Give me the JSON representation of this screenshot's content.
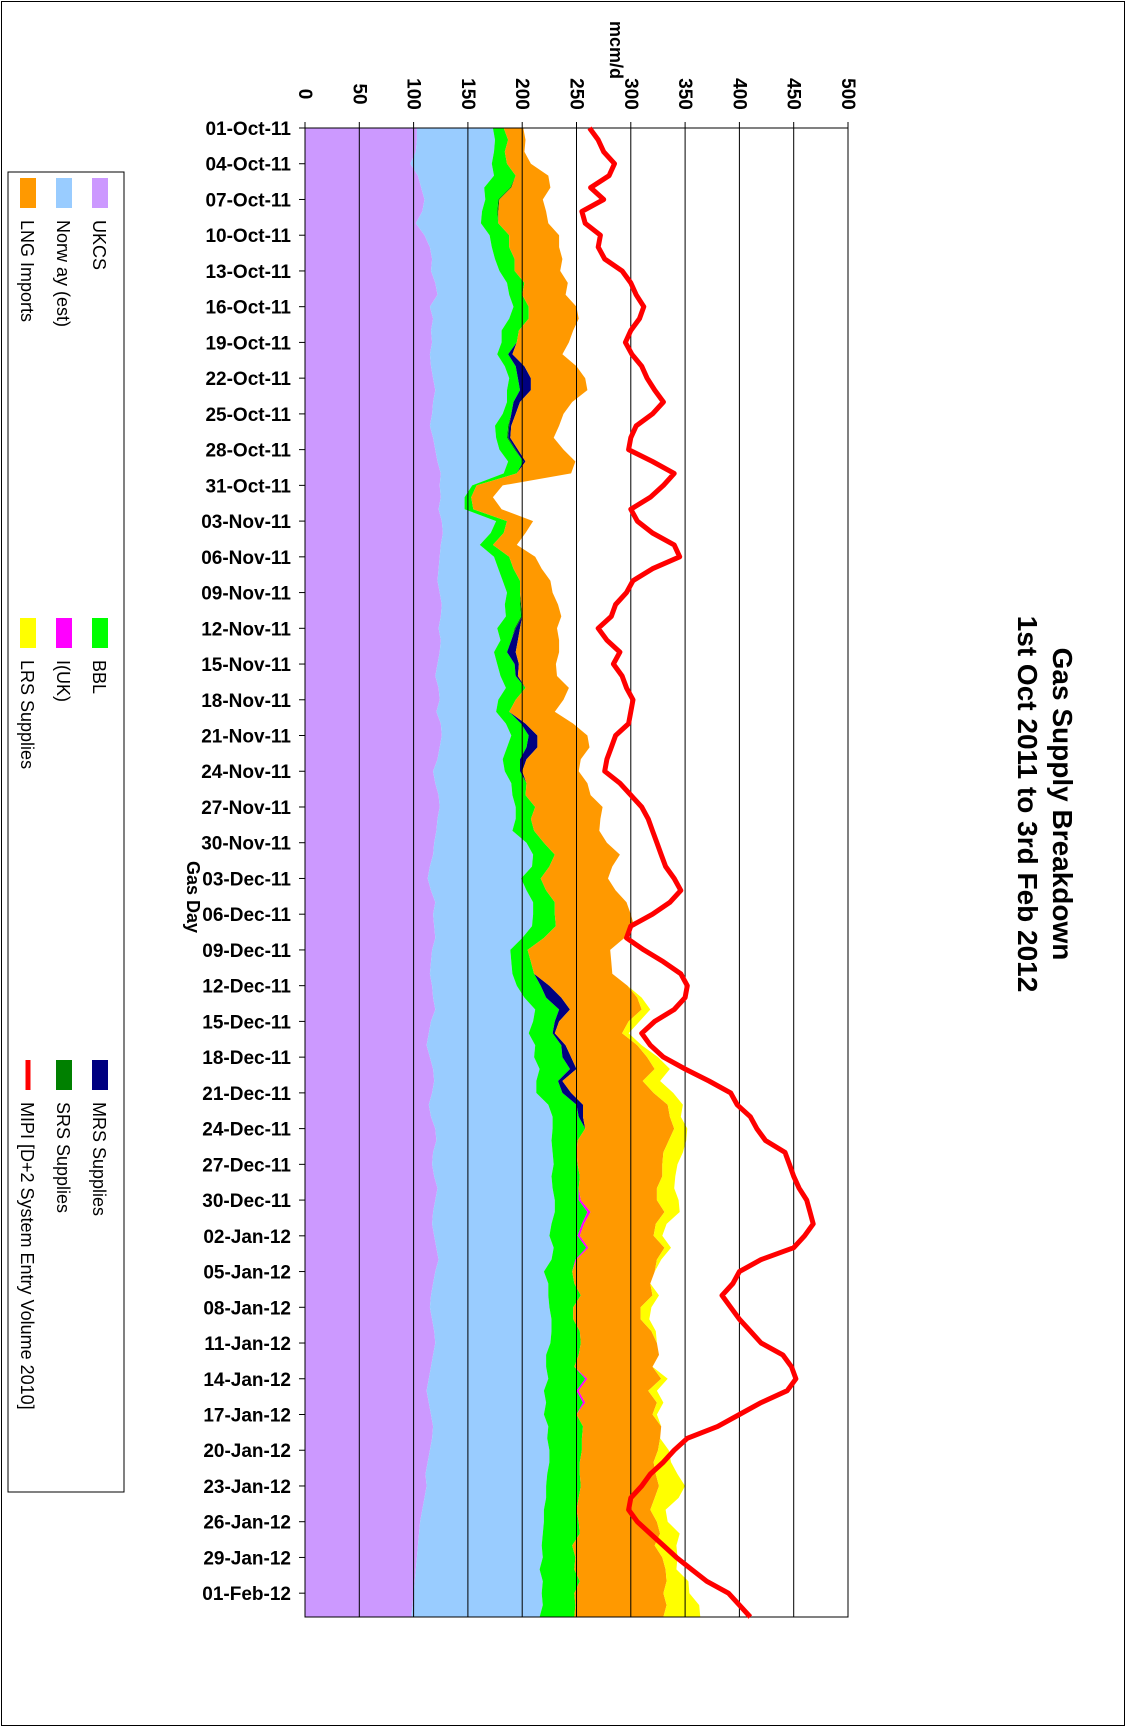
{
  "chart_data": {
    "type": "area",
    "orientation": "rotated-90-clockwise",
    "title": "Gas Supply Breakdown",
    "subtitle": "1st Oct 2011 to 3rd Feb 2012",
    "xlabel": "Gas Day",
    "ylabel": "mcm/d",
    "ylim": [
      0,
      500
    ],
    "yticks": [
      0,
      50,
      100,
      150,
      200,
      250,
      300,
      350,
      400,
      450,
      500
    ],
    "grid": true,
    "legend_position": "left (rotated)",
    "x_labels": [
      "01-Oct-11",
      "04-Oct-11",
      "07-Oct-11",
      "10-Oct-11",
      "13-Oct-11",
      "16-Oct-11",
      "19-Oct-11",
      "22-Oct-11",
      "25-Oct-11",
      "28-Oct-11",
      "31-Oct-11",
      "03-Nov-11",
      "06-Nov-11",
      "09-Nov-11",
      "12-Nov-11",
      "15-Nov-11",
      "18-Nov-11",
      "21-Nov-11",
      "24-Nov-11",
      "27-Nov-11",
      "30-Nov-11",
      "03-Dec-11",
      "06-Dec-11",
      "09-Dec-11",
      "12-Dec-11",
      "15-Dec-11",
      "18-Dec-11",
      "21-Dec-11",
      "24-Dec-11",
      "27-Dec-11",
      "30-Dec-11",
      "02-Jan-12",
      "05-Jan-12",
      "08-Jan-12",
      "11-Jan-12",
      "14-Jan-12",
      "17-Jan-12",
      "20-Jan-12",
      "23-Jan-12",
      "26-Jan-12",
      "29-Jan-12",
      "01-Feb-12"
    ],
    "day_count": 126,
    "x_interval_days": 3,
    "series": [
      {
        "name": "UKCS",
        "kind": "area",
        "color": "#CC99FF",
        "values": [
          103,
          103,
          102,
          97,
          104,
          107,
          110,
          108,
          102,
          110,
          115,
          117,
          116,
          120,
          122,
          115,
          118,
          116,
          117,
          115,
          116,
          118,
          120,
          118,
          117,
          115,
          118,
          120,
          122,
          125,
          124,
          125,
          123,
          126,
          127,
          125,
          124,
          123,
          122,
          124,
          126,
          125,
          123,
          125,
          124,
          122,
          120,
          123,
          124,
          121,
          125,
          126,
          124,
          122,
          118,
          120,
          123,
          124,
          122,
          121,
          119,
          118,
          115,
          113,
          116,
          120,
          118,
          119,
          120,
          117,
          116,
          115,
          117,
          118,
          120,
          116,
          114,
          112,
          115,
          118,
          119,
          117,
          114,
          116,
          120,
          121,
          118,
          117,
          119,
          122,
          120,
          118,
          117,
          119,
          121,
          123,
          120,
          118,
          116,
          115,
          117,
          119,
          120,
          118,
          116,
          114,
          112,
          114,
          116,
          118,
          117,
          115,
          113,
          111,
          112,
          110,
          108,
          106,
          105,
          104,
          103,
          102,
          101,
          100,
          99,
          98
        ]
      },
      {
        "name": "Norw ay (est)",
        "kind": "area",
        "color": "#99CCFF",
        "values": [
          70,
          72,
          72,
          75,
          70,
          58,
          56,
          55,
          60,
          60,
          57,
          58,
          63,
          66,
          66,
          77,
          70,
          65,
          64,
          62,
          68,
          70,
          66,
          68,
          65,
          60,
          58,
          59,
          65,
          58,
          30,
          22,
          24,
          50,
          44,
          36,
          50,
          55,
          60,
          62,
          58,
          60,
          54,
          55,
          50,
          55,
          60,
          62,
          54,
          55,
          60,
          64,
          62,
          60,
          66,
          70,
          68,
          70,
          72,
          70,
          85,
          92,
          94,
          86,
          88,
          90,
          92,
          90,
          80,
          72,
          74,
          76,
          78,
          84,
          92,
          94,
          92,
          100,
          96,
          98,
          94,
          96,
          110,
          112,
          108,
          106,
          110,
          112,
          108,
          106,
          110,
          112,
          110,
          106,
          108,
          104,
          100,
          106,
          108,
          110,
          110,
          108,
          106,
          104,
          106,
          110,
          108,
          108,
          104,
          106,
          106,
          110,
          112,
          112,
          110,
          112,
          112,
          114,
          114,
          114,
          116,
          114,
          118,
          118,
          120,
          118
        ]
      },
      {
        "name": "BBL",
        "kind": "area",
        "color": "#00FF00",
        "values": [
          10,
          12,
          10,
          14,
          20,
          24,
          12,
          14,
          16,
          18,
          16,
          18,
          14,
          16,
          12,
          14,
          18,
          16,
          14,
          10,
          10,
          8,
          12,
          6,
          8,
          12,
          10,
          14,
          14,
          12,
          4,
          6,
          8,
          10,
          12,
          12,
          14,
          14,
          16,
          12,
          14,
          14,
          16,
          10,
          12,
          16,
          14,
          18,
          16,
          12,
          14,
          16,
          18,
          16,
          14,
          14,
          12,
          18,
          14,
          20,
          16,
          20,
          16,
          18,
          18,
          20,
          20,
          22,
          20,
          16,
          18,
          20,
          22,
          20,
          22,
          20,
          22,
          24,
          26,
          28,
          20,
          24,
          26,
          24,
          30,
          24,
          22,
          22,
          26,
          24,
          22,
          30,
          28,
          26,
          30,
          22,
          26,
          24,
          30,
          22,
          20,
          26,
          28,
          30,
          26,
          34,
          30,
          34,
          30,
          32,
          32,
          30,
          28,
          30,
          32,
          30,
          30,
          32,
          34,
          28,
          30,
          32,
          34,
          30,
          30,
          32
        ]
      },
      {
        "name": "I(UK)",
        "kind": "area",
        "color": "#FF00FF",
        "values": [
          0,
          0,
          0,
          0,
          0,
          0,
          0,
          0,
          0,
          0,
          0,
          0,
          0,
          0,
          0,
          0,
          0,
          0,
          0,
          0,
          0,
          0,
          0,
          0,
          0,
          0,
          0,
          0,
          0,
          0,
          0,
          0,
          0,
          0,
          0,
          0,
          0,
          0,
          0,
          0,
          0,
          0,
          0,
          0,
          0,
          0,
          0,
          0,
          0,
          0,
          0,
          0,
          0,
          0,
          0,
          0,
          0,
          0,
          0,
          0,
          0,
          0,
          0,
          0,
          0,
          0,
          0,
          0,
          0,
          0,
          0,
          0,
          0,
          0,
          0,
          0,
          0,
          0,
          0,
          0,
          0,
          0,
          0,
          0,
          0,
          0,
          0,
          0,
          0,
          0,
          2,
          3,
          2,
          2,
          2,
          1,
          0,
          0,
          0,
          0,
          0,
          0,
          0,
          0,
          0,
          2,
          2,
          2,
          0,
          0,
          0,
          0,
          0,
          0,
          0,
          0,
          0,
          0,
          0,
          0,
          0,
          0,
          0,
          0,
          0,
          0
        ]
      },
      {
        "name": "SRS Supplies",
        "kind": "area",
        "color": "#008000",
        "values": [
          0,
          0,
          0,
          0,
          0,
          1,
          1,
          1,
          0,
          0,
          0,
          0,
          0,
          0,
          0,
          0,
          0,
          0,
          0,
          0,
          0,
          0,
          0,
          0,
          0,
          1,
          1,
          1,
          0,
          0,
          0,
          0,
          0,
          0,
          0,
          0,
          0,
          0,
          0,
          0,
          1,
          1,
          1,
          0,
          0,
          0,
          0,
          0,
          0,
          0,
          0,
          0,
          0,
          0,
          0,
          0,
          0,
          0,
          0,
          0,
          0,
          0,
          0,
          0,
          0,
          0,
          0,
          0,
          0,
          0,
          0,
          0,
          0,
          0,
          0,
          0,
          0,
          0,
          0,
          0,
          0,
          0,
          0,
          0,
          0,
          0,
          0,
          0,
          0,
          0,
          0,
          0,
          0,
          0,
          0,
          0,
          0,
          0,
          0,
          0,
          0,
          0,
          0,
          0,
          0,
          0,
          0,
          0,
          0,
          0,
          0,
          0,
          0,
          0,
          0,
          0,
          0,
          0,
          0,
          0,
          0,
          0,
          0,
          0,
          0,
          0
        ]
      },
      {
        "name": "MRS Supplies",
        "kind": "area",
        "color": "#000080",
        "values": [
          0,
          0,
          0,
          0,
          0,
          0,
          0,
          0,
          0,
          0,
          0,
          0,
          0,
          0,
          0,
          0,
          0,
          0,
          0,
          4,
          8,
          12,
          10,
          6,
          4,
          2,
          2,
          2,
          2,
          0,
          0,
          0,
          0,
          0,
          0,
          0,
          0,
          0,
          0,
          0,
          0,
          0,
          4,
          6,
          8,
          4,
          2,
          0,
          0,
          0,
          4,
          8,
          10,
          6,
          2,
          0,
          0,
          0,
          0,
          0,
          0,
          0,
          0,
          0,
          0,
          0,
          0,
          0,
          0,
          0,
          0,
          0,
          8,
          14,
          10,
          4,
          2,
          4,
          8,
          6,
          4,
          8,
          6,
          4,
          0,
          0,
          0,
          0,
          0,
          0,
          0,
          0,
          0,
          0,
          0,
          0,
          0,
          0,
          0,
          0,
          0,
          0,
          0,
          0,
          0,
          0,
          0,
          0,
          0,
          0,
          0,
          0,
          0,
          0,
          0,
          0,
          0,
          0,
          0,
          0,
          0,
          0,
          0,
          0,
          0,
          0
        ]
      },
      {
        "name": "LNG Imports",
        "kind": "area",
        "color": "#FF9900",
        "values": [
          18,
          16,
          18,
          22,
          30,
          36,
          40,
          44,
          46,
          46,
          46,
          44,
          42,
          40,
          40,
          44,
          46,
          50,
          48,
          46,
          48,
          50,
          52,
          48,
          44,
          44,
          40,
          42,
          46,
          50,
          24,
          20,
          26,
          24,
          20,
          22,
          24,
          26,
          28,
          30,
          34,
          36,
          34,
          38,
          40,
          34,
          36,
          40,
          44,
          42,
          44,
          46,
          48,
          50,
          52,
          56,
          60,
          62,
          64,
          60,
          58,
          60,
          58,
          62,
          64,
          66,
          70,
          72,
          74,
          76,
          74,
          72,
          72,
          70,
          66,
          64,
          62,
          66,
          70,
          72,
          74,
          76,
          78,
          80,
          82,
          84,
          80,
          78,
          76,
          72,
          70,
          68,
          66,
          68,
          70,
          74,
          76,
          70,
          66,
          62,
          62,
          66,
          70,
          74,
          72,
          68,
          64,
          66,
          70,
          72,
          72,
          70,
          68,
          70,
          72,
          70,
          68,
          72,
          74,
          76,
          80,
          84,
          80,
          82,
          84,
          82
        ]
      },
      {
        "name": "LRS Supplies",
        "kind": "area",
        "color": "#FFFF00",
        "values": [
          0,
          0,
          0,
          0,
          0,
          0,
          0,
          0,
          0,
          0,
          0,
          0,
          0,
          0,
          0,
          0,
          0,
          0,
          0,
          0,
          0,
          0,
          0,
          0,
          0,
          0,
          0,
          0,
          0,
          0,
          0,
          0,
          0,
          0,
          0,
          0,
          0,
          0,
          0,
          0,
          0,
          0,
          0,
          0,
          0,
          0,
          0,
          0,
          0,
          0,
          0,
          0,
          0,
          0,
          0,
          0,
          0,
          0,
          0,
          0,
          0,
          0,
          0,
          0,
          0,
          0,
          0,
          0,
          0,
          0,
          0,
          0,
          0,
          4,
          8,
          10,
          6,
          4,
          10,
          14,
          16,
          18,
          14,
          10,
          12,
          16,
          18,
          14,
          12,
          16,
          20,
          14,
          10,
          8,
          6,
          4,
          0,
          0,
          6,
          10,
          8,
          4,
          0,
          0,
          0,
          6,
          8,
          6,
          4,
          0,
          0,
          10,
          16,
          20,
          24,
          22,
          14,
          10,
          18,
          20,
          14,
          10,
          20,
          24,
          30,
          34
        ]
      },
      {
        "name": "MIPI [D+2 System Entry Volume 2010]",
        "kind": "line",
        "color": "#FF0000",
        "values": [
          262,
          270,
          275,
          285,
          280,
          263,
          275,
          255,
          258,
          272,
          270,
          276,
          292,
          300,
          305,
          312,
          308,
          300,
          295,
          301,
          310,
          315,
          322,
          330,
          320,
          305,
          300,
          298,
          320,
          340,
          330,
          318,
          300,
          306,
          320,
          340,
          345,
          320,
          302,
          296,
          286,
          282,
          270,
          278,
          290,
          284,
          292,
          296,
          302,
          300,
          298,
          286,
          282,
          278,
          276,
          290,
          300,
          310,
          316,
          320,
          324,
          328,
          332,
          340,
          346,
          336,
          320,
          300,
          296,
          312,
          330,
          346,
          352,
          350,
          340,
          322,
          310,
          318,
          330,
          350,
          372,
          392,
          398,
          410,
          416,
          424,
          442,
          446,
          450,
          455,
          462,
          465,
          468,
          460,
          450,
          420,
          400,
          394,
          384,
          392,
          400,
          410,
          420,
          440,
          448,
          452,
          444,
          420,
          400,
          380,
          352,
          340,
          330,
          318,
          310,
          300,
          298,
          306,
          318,
          330,
          342,
          356,
          370,
          390,
          400,
          410
        ]
      }
    ]
  },
  "legend": [
    {
      "label": "UKCS",
      "color": "#CC99FF",
      "kind": "area"
    },
    {
      "label": "Norw ay (est)",
      "color": "#99CCFF",
      "kind": "area"
    },
    {
      "label": "LNG Imports",
      "color": "#FF9900",
      "kind": "area"
    },
    {
      "label": "BBL",
      "color": "#00FF00",
      "kind": "area"
    },
    {
      "label": "I(UK)",
      "color": "#FF00FF",
      "kind": "area"
    },
    {
      "label": "LRS Supplies",
      "color": "#FFFF00",
      "kind": "area"
    },
    {
      "label": "MRS Supplies",
      "color": "#000080",
      "kind": "area"
    },
    {
      "label": "SRS Supplies",
      "color": "#008000",
      "kind": "area"
    },
    {
      "label": "MIPI [D+2 System Entry Volume 2010]",
      "color": "#FF0000",
      "kind": "line"
    }
  ]
}
